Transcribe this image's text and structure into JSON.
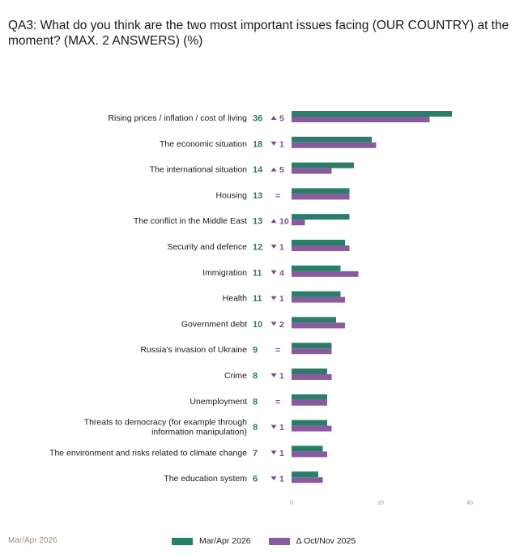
{
  "title": "QA3: What do you think are the two most important issues facing (OUR COUNTRY) at the moment? (MAX. 2 ANSWERS) (%)",
  "footer": {
    "date": "Mar/Apr 2026"
  },
  "colors": {
    "current": "#2a7d6b",
    "previous": "#8a5a9e",
    "change": "#7d4a8e",
    "value": "#2f7a6a"
  },
  "legend": [
    {
      "label": "Mar/Apr 2026",
      "color": "#2a7d6b"
    },
    {
      "label": "Δ Oct/Nov 2025",
      "color": "#8a5a9e"
    }
  ],
  "chart_data": {
    "type": "bar",
    "orientation": "horizontal",
    "categories": [
      "Rising prices / inflation / cost of living",
      "The economic situation",
      "The international situation",
      "Housing",
      "The conflict in the Middle East",
      "Security and defence",
      "Immigration",
      "Health",
      "Government debt",
      "Russia's invasion of Ukraine",
      "Crime",
      "Unemployment",
      "Threats to democracy (for example through information manipulation)",
      "The environment and risks related to climate change",
      "The education system"
    ],
    "series": [
      {
        "name": "Mar/Apr 2026",
        "values": [
          36,
          18,
          14,
          13,
          13,
          12,
          11,
          11,
          10,
          9,
          8,
          8,
          8,
          7,
          6
        ]
      },
      {
        "name": "Δ Oct/Nov 2025",
        "values": [
          31,
          19,
          9,
          13,
          3,
          13,
          15,
          12,
          12,
          9,
          9,
          8,
          9,
          8,
          7
        ]
      }
    ],
    "changes": [
      {
        "direction": "up",
        "text": "5"
      },
      {
        "direction": "down",
        "text": "1"
      },
      {
        "direction": "up",
        "text": "5"
      },
      {
        "direction": "equal",
        "text": "="
      },
      {
        "direction": "up",
        "text": "10"
      },
      {
        "direction": "down",
        "text": "1"
      },
      {
        "direction": "down",
        "text": "4"
      },
      {
        "direction": "down",
        "text": "1"
      },
      {
        "direction": "down",
        "text": "2"
      },
      {
        "direction": "equal",
        "text": "="
      },
      {
        "direction": "down",
        "text": "1"
      },
      {
        "direction": "equal",
        "text": "="
      },
      {
        "direction": "down",
        "text": "1"
      },
      {
        "direction": "down",
        "text": "1"
      },
      {
        "direction": "down",
        "text": "1"
      }
    ],
    "xticks": [
      "0",
      "20",
      "40"
    ],
    "xlim": [
      0,
      40
    ],
    "grid": false
  }
}
